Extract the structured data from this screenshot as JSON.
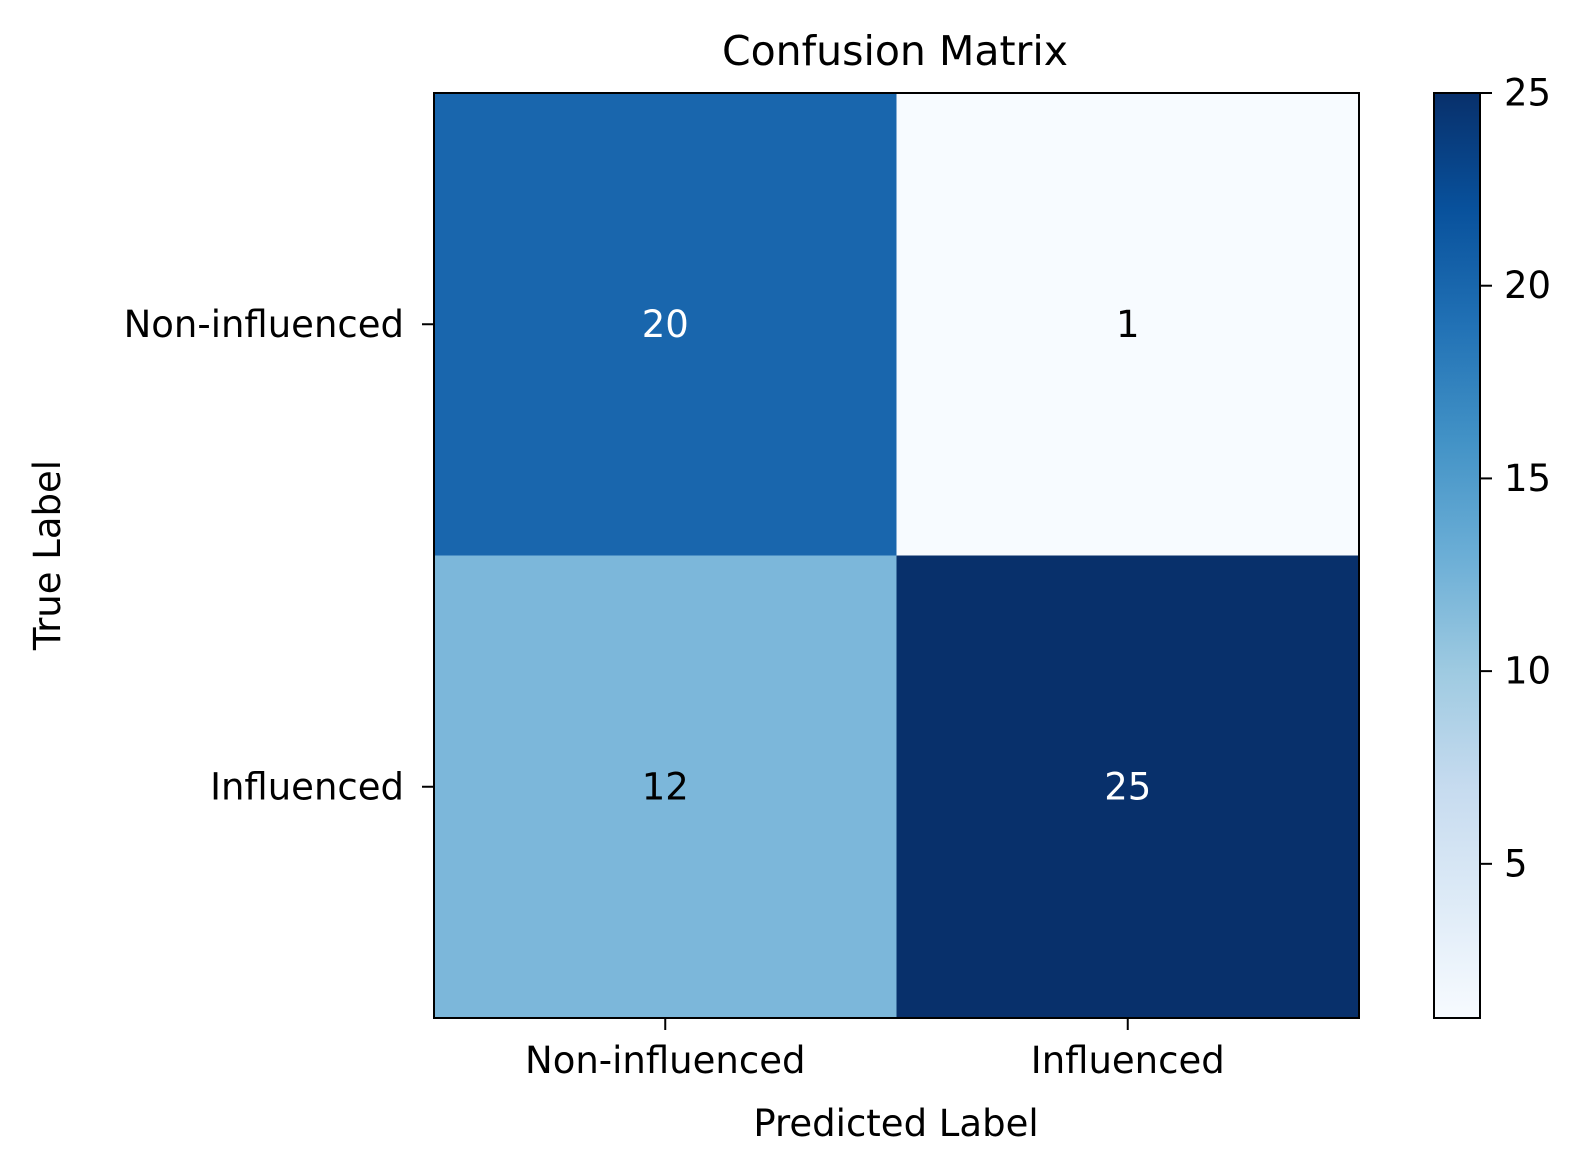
{
  "chart_data": {
    "type": "heatmap",
    "title": "Confusion Matrix",
    "xlabel": "Predicted Label",
    "ylabel": "True Label",
    "x_categories": [
      "Non-influenced",
      "Influenced"
    ],
    "y_categories": [
      "Non-influenced",
      "Influenced"
    ],
    "values": [
      [
        20,
        1
      ],
      [
        12,
        25
      ]
    ],
    "colormap": "Blues",
    "colorbar": {
      "range": [
        1,
        25
      ],
      "ticks": [
        5,
        10,
        15,
        20,
        25
      ]
    },
    "grid": false
  }
}
